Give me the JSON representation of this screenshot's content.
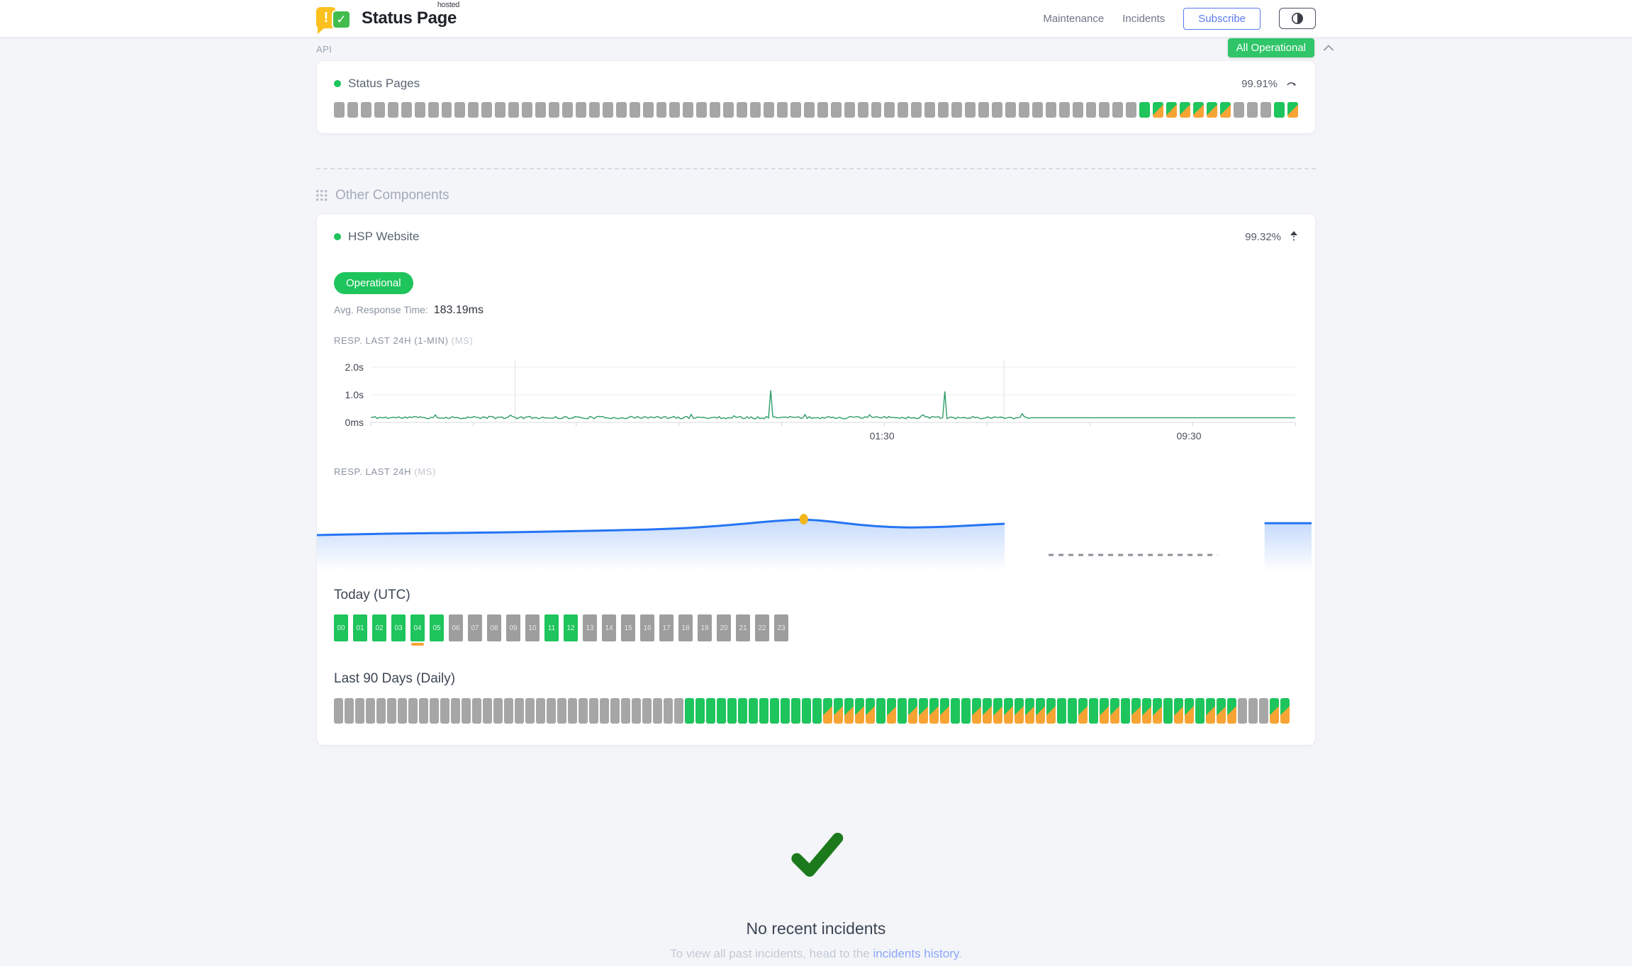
{
  "header": {
    "brand_name": "Status Page",
    "brand_sup": "hosted",
    "logo_exclaim": "!",
    "logo_check": "✓",
    "nav": [
      {
        "label": "Maintenance"
      },
      {
        "label": "Incidents"
      }
    ],
    "subscribe_label": "Subscribe",
    "status_badge": "All Operational"
  },
  "colors": {
    "green": "#1EC45C",
    "orange": "#F7A435",
    "gray_bar": "#A6A6A6",
    "chart_green": "#2E9C66",
    "blue_line": "#2574F4",
    "marker_yellow": "#F2B51D",
    "dashed_gray": "#8a9097",
    "check_green": "#1C7A1C",
    "badge_green": "#2FC568",
    "subscribe_blue": "#5B79EF",
    "link_blue": "#8DA6F7"
  },
  "api_section": {
    "title": "API",
    "component": {
      "name": "Status Pages",
      "uptime": "99.91%",
      "bars_legend": {
        "n": "no-data",
        "g": "operational",
        "o": "partial-outage"
      },
      "bars_pattern": "nnnnnnnnnnnnnnnnnnnnnnnnnnnnnnnnnnnnnnnnnnnnnnnnnnnnnnnnnnnngoooooonnngo"
    }
  },
  "other_components": {
    "title": "Other Components",
    "component": {
      "name": "HSP Website",
      "uptime": "99.32%",
      "status": "Operational",
      "avg_response_label": "Avg. Response Time:",
      "avg_response_value": "183.19ms",
      "chart_24h_1min": {
        "type": "line",
        "label": "RESP. LAST 24H (1-MIN)",
        "unit": "(MS)",
        "y_ticks": [
          "2.0s",
          "1.0s",
          "0ms"
        ],
        "x_labels": [
          {
            "text": "01:30",
            "x": 0.553
          },
          {
            "text": "09:30",
            "x": 0.885
          }
        ],
        "gridlines_x": [
          0.156,
          0.685
        ],
        "base_ms": 175,
        "noise_ms": 90,
        "spikes": [
          {
            "x": 0.433,
            "ms": 1160
          },
          {
            "x": 0.62,
            "ms": 1120
          }
        ],
        "flat_from": 0.712,
        "flat_ms": 170
      },
      "chart_24h": {
        "type": "area",
        "label": "RESP. LAST 24H",
        "unit": "(MS)",
        "main": {
          "from": 0,
          "to": 0.688,
          "values_ms": [
            150,
            153,
            156,
            158,
            160,
            161,
            163,
            165,
            167,
            170,
            173,
            176,
            180,
            186,
            196,
            208,
            222,
            230,
            218,
            200,
            190,
            188,
            192,
            200,
            207
          ]
        },
        "marker": {
          "x": 0.487,
          "ms": 230
        },
        "gap_dashed": {
          "from": 0.732,
          "to": 0.901
        },
        "tail": {
          "from": 0.948,
          "to": 0.995,
          "ms": 210
        }
      },
      "today": {
        "title": "Today (UTC)",
        "hours": [
          {
            "label": "00",
            "state": "g"
          },
          {
            "label": "01",
            "state": "g"
          },
          {
            "label": "02",
            "state": "g"
          },
          {
            "label": "03",
            "state": "g"
          },
          {
            "label": "04",
            "state": "g",
            "incident": true
          },
          {
            "label": "05",
            "state": "g"
          },
          {
            "label": "06",
            "state": "x"
          },
          {
            "label": "07",
            "state": "x"
          },
          {
            "label": "08",
            "state": "x"
          },
          {
            "label": "09",
            "state": "x"
          },
          {
            "label": "10",
            "state": "x"
          },
          {
            "label": "11",
            "state": "g"
          },
          {
            "label": "12",
            "state": "g"
          },
          {
            "label": "13",
            "state": "x"
          },
          {
            "label": "14",
            "state": "x"
          },
          {
            "label": "15",
            "state": "x"
          },
          {
            "label": "16",
            "state": "x"
          },
          {
            "label": "17",
            "state": "x"
          },
          {
            "label": "18",
            "state": "x"
          },
          {
            "label": "19",
            "state": "x"
          },
          {
            "label": "20",
            "state": "x"
          },
          {
            "label": "21",
            "state": "x"
          },
          {
            "label": "22",
            "state": "x"
          },
          {
            "label": "23",
            "state": "x"
          }
        ]
      },
      "last_90": {
        "title": "Last 90 Days (Daily)",
        "days_legend": {
          "n": "no-data",
          "g": "operational",
          "o": "partial-outage"
        },
        "days_pattern": "nnnnnnnnnnnnnnnnnnnnnnnnnnnnnnnnngggggggggggggooooogogooooggooooooooggogoogooogoogooonnnoo"
      }
    }
  },
  "incidents": {
    "title": "No recent incidents",
    "subtitle_prefix": "To view all past incidents, head to the ",
    "link_text": "incidents history",
    "subtitle_suffix": "."
  }
}
